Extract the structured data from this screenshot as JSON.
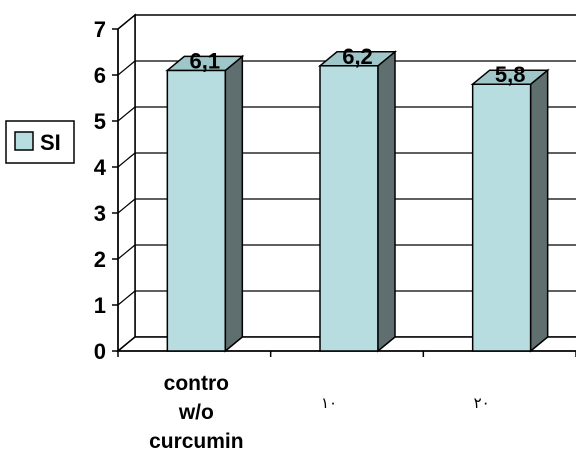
{
  "chart_data": {
    "type": "bar",
    "style": "3d-column",
    "categories": [
      "contro\nw/o\ncurcumin",
      "١٠",
      "٢٠"
    ],
    "series": [
      {
        "name": "SI",
        "values": [
          6.1,
          6.2,
          5.8
        ],
        "value_labels": [
          "6,1",
          "6,2",
          "5,8"
        ]
      }
    ],
    "yticks": [
      "0",
      "1",
      "2",
      "3",
      "4",
      "5",
      "6",
      "7"
    ],
    "ylim": [
      0,
      7
    ],
    "grid": true,
    "legend": "left",
    "colors": {
      "front": "#b8dde0",
      "side": "#5f6e6e",
      "top": "#9fc7c9",
      "wall": "#ffffff",
      "grid": "#000000"
    }
  }
}
